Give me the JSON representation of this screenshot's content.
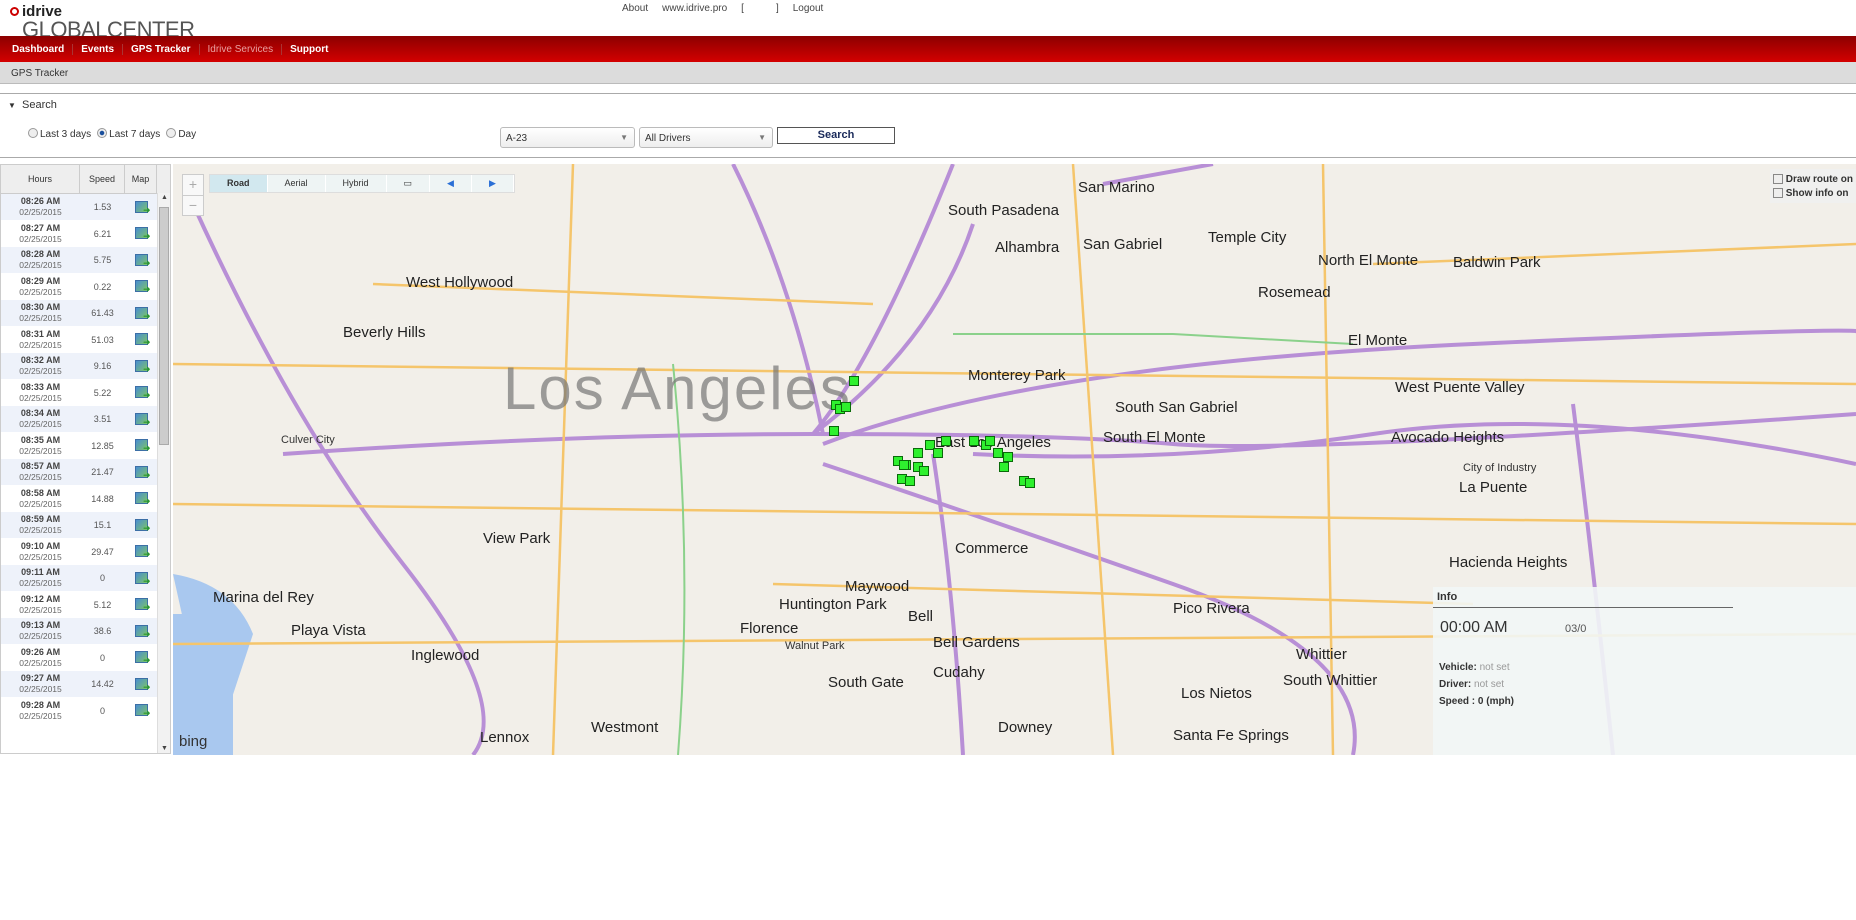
{
  "header": {
    "brand_top": "idrive",
    "brand_bottom": "GLOBALCENTER",
    "links": [
      "About",
      "www.idrive.pro",
      "[",
      "]",
      "Logout"
    ]
  },
  "nav": {
    "items": [
      "Dashboard",
      "Events",
      "GPS Tracker",
      "Idrive Services",
      "Support"
    ]
  },
  "subheader": {
    "title": "GPS Tracker"
  },
  "search": {
    "toggle": "Search",
    "ranges": [
      "Last 3 days",
      "Last 7 days",
      "Day"
    ],
    "selected_range": "Last 7 days",
    "vehicle": "A-23",
    "driver": "All Drivers",
    "button": "Search"
  },
  "table": {
    "headers": [
      "Hours",
      "Speed",
      "Map"
    ],
    "rows": [
      {
        "time": "08:26 AM",
        "date": "02/25/2015",
        "speed": "1.53"
      },
      {
        "time": "08:27 AM",
        "date": "02/25/2015",
        "speed": "6.21"
      },
      {
        "time": "08:28 AM",
        "date": "02/25/2015",
        "speed": "5.75"
      },
      {
        "time": "08:29 AM",
        "date": "02/25/2015",
        "speed": "0.22"
      },
      {
        "time": "08:30 AM",
        "date": "02/25/2015",
        "speed": "61.43"
      },
      {
        "time": "08:31 AM",
        "date": "02/25/2015",
        "speed": "51.03"
      },
      {
        "time": "08:32 AM",
        "date": "02/25/2015",
        "speed": "9.16"
      },
      {
        "time": "08:33 AM",
        "date": "02/25/2015",
        "speed": "5.22"
      },
      {
        "time": "08:34 AM",
        "date": "02/25/2015",
        "speed": "3.51"
      },
      {
        "time": "08:35 AM",
        "date": "02/25/2015",
        "speed": "12.85"
      },
      {
        "time": "08:57 AM",
        "date": "02/25/2015",
        "speed": "21.47"
      },
      {
        "time": "08:58 AM",
        "date": "02/25/2015",
        "speed": "14.88"
      },
      {
        "time": "08:59 AM",
        "date": "02/25/2015",
        "speed": "15.1"
      },
      {
        "time": "09:10 AM",
        "date": "02/25/2015",
        "speed": "29.47"
      },
      {
        "time": "09:11 AM",
        "date": "02/25/2015",
        "speed": "0"
      },
      {
        "time": "09:12 AM",
        "date": "02/25/2015",
        "speed": "5.12"
      },
      {
        "time": "09:13 AM",
        "date": "02/25/2015",
        "speed": "38.6"
      },
      {
        "time": "09:26 AM",
        "date": "02/25/2015",
        "speed": "0"
      },
      {
        "time": "09:27 AM",
        "date": "02/25/2015",
        "speed": "14.42"
      },
      {
        "time": "09:28 AM",
        "date": "02/25/2015",
        "speed": "0"
      }
    ]
  },
  "map": {
    "view_modes": [
      "Road",
      "Aerial",
      "Hybrid"
    ],
    "active_view": "Road",
    "provider": "bing",
    "options": [
      "Draw route on",
      "Show info on"
    ],
    "labels": [
      "Los Angeles",
      "Beverly Hills",
      "West Hollywood",
      "South Pasadena",
      "San Marino",
      "Alhambra",
      "San Gabriel",
      "Temple City",
      "North El Monte",
      "Rosemead",
      "El Monte",
      "Baldwin Park",
      "Monterey Park",
      "South San Gabriel",
      "South El Monte",
      "West Puente Valley",
      "Avocado Heights",
      "East Los Angeles",
      "Commerce",
      "View Park",
      "Culver City",
      "Marina del Rey",
      "Playa Vista",
      "Inglewood",
      "Huntington Park",
      "Maywood",
      "Bell",
      "Florence",
      "Walnut Park",
      "Bell Gardens",
      "Cudahy",
      "South Gate",
      "Downey",
      "Pico Rivera",
      "Whittier",
      "South Whittier",
      "Hacienda Heights",
      "La Puente",
      "Westmont",
      "Lennox",
      "Los Nietos",
      "Santa Fe Springs",
      "City of Industry"
    ],
    "info": {
      "title": "Info",
      "time": "00:00 AM",
      "date": "03/0",
      "vehicle_label": "Vehicle:",
      "vehicle": "not set",
      "driver_label": "Driver:",
      "driver": "not set",
      "speed": "Speed : 0 (mph)"
    },
    "marker_color": "#2ef02e"
  }
}
